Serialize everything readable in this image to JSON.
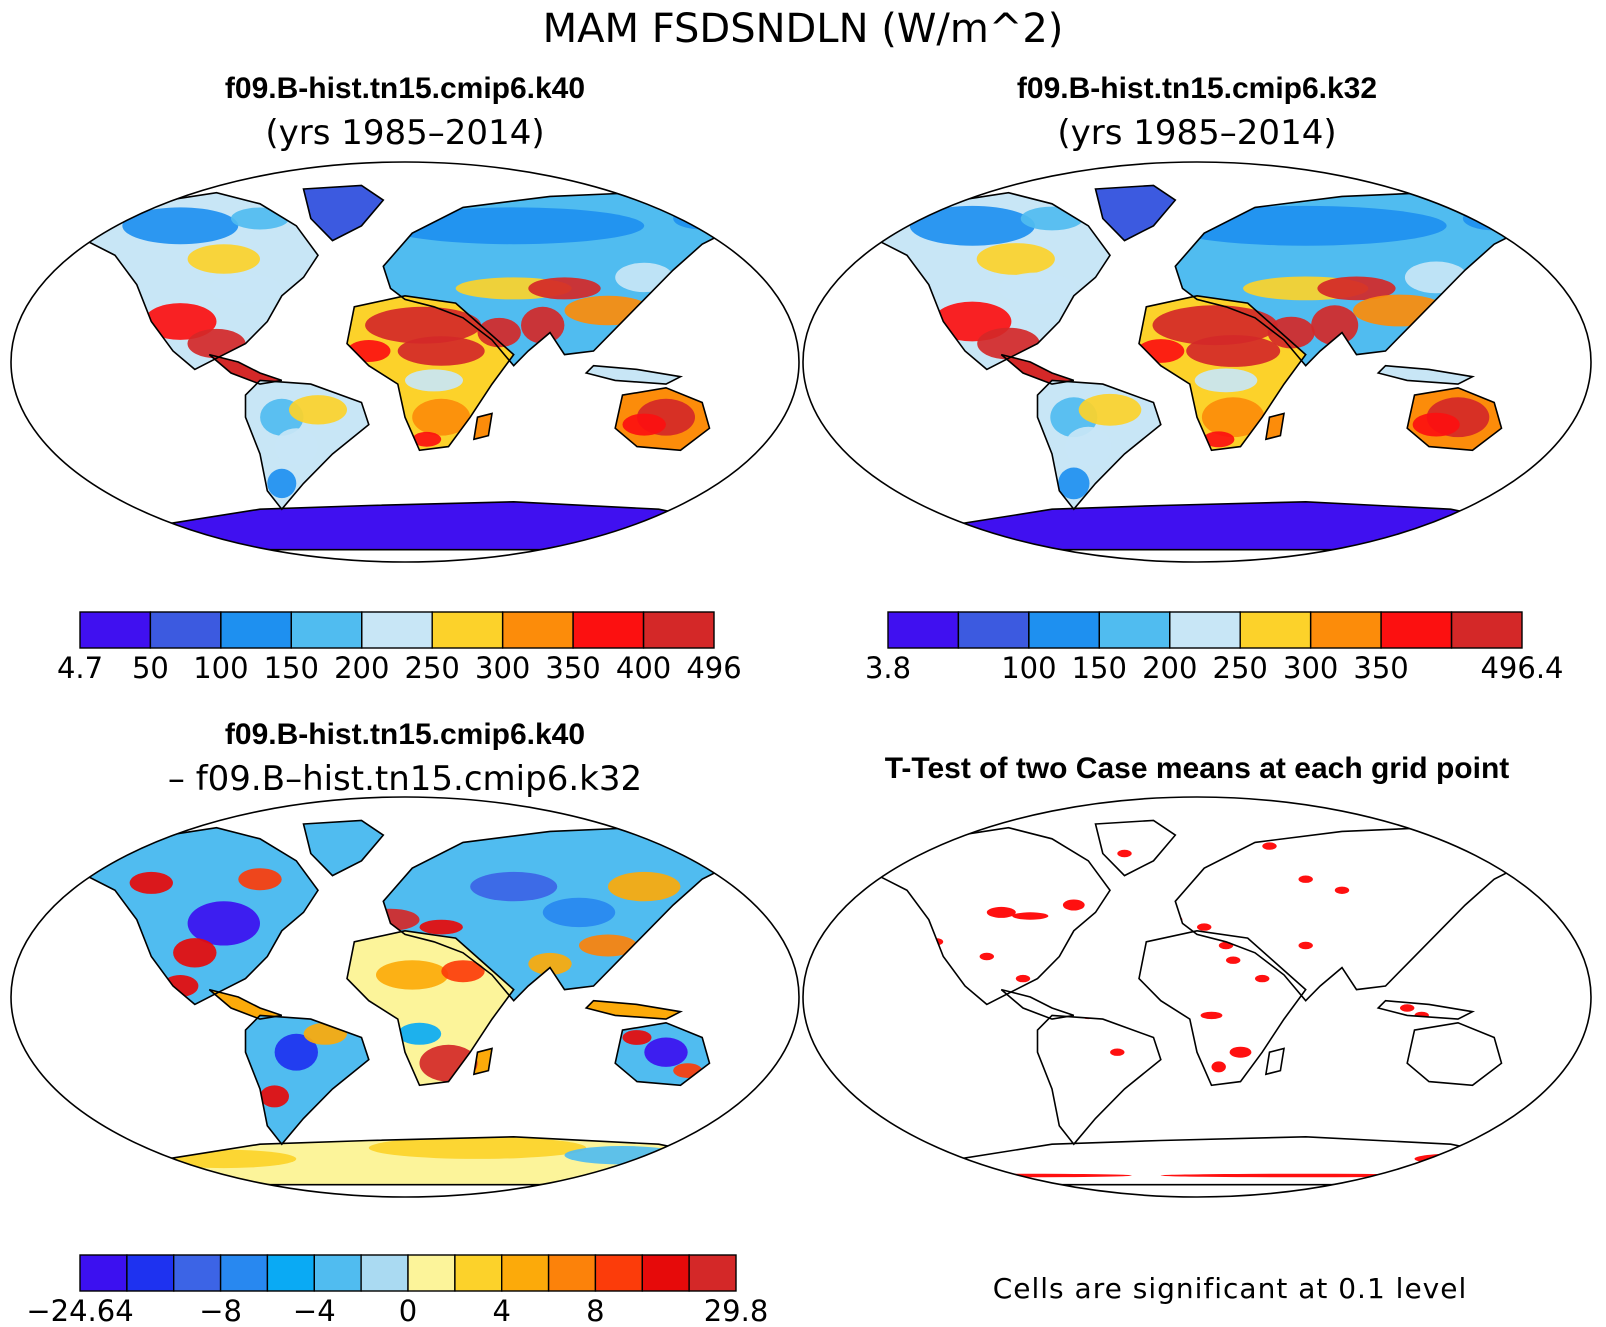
{
  "figure": {
    "title": "MAM FSDSNDLN (W/m^2)"
  },
  "colors": {
    "abs_palette": [
      "#4010f0",
      "#3c5ae0",
      "#1e90f0",
      "#50bcf0",
      "#c8e6f6",
      "#fcd22a",
      "#fc8c0a",
      "#fc1010",
      "#d42828"
    ],
    "diff_palette": [
      "#3c10f0",
      "#1e32f0",
      "#3c64e6",
      "#2888f0",
      "#0aaaf4",
      "#50bcf0",
      "#aadaf2",
      "#fcf49a",
      "#fcd22a",
      "#fcaa0a",
      "#fc820a",
      "#fc3c0a",
      "#e60a0a",
      "#d42828"
    ],
    "significant": "#ff1010",
    "coastline": "#000000"
  },
  "panels": {
    "case1": {
      "title": "f09.B-hist.tn15.cmip6.k40",
      "subtitle": "(yrs 1985–2014)"
    },
    "case2": {
      "title": "f09.B-hist.tn15.cmip6.k32",
      "subtitle": "(yrs 1985–2014)"
    },
    "diff": {
      "title": "f09.B-hist.tn15.cmip6.k40",
      "subtitle": "– f09.B–hist.tn15.cmip6.k32"
    },
    "ttest": {
      "title": "T-Test of two Case means at each grid point",
      "note": "Cells are significant at 0.1 level"
    }
  },
  "chart_data": [
    {
      "type": "heatmap",
      "name_ref": "case1",
      "projection": "robinson",
      "colorbar": {
        "boundaries": [
          4.7,
          50,
          100,
          150,
          200,
          250,
          300,
          350,
          400,
          496
        ],
        "labels": [
          "4.7",
          "50",
          "100",
          "150",
          "200",
          "250",
          "300",
          "350",
          "400",
          "496"
        ],
        "range": [
          4.7,
          496
        ]
      }
    },
    {
      "type": "heatmap",
      "name_ref": "case2",
      "projection": "robinson",
      "colorbar": {
        "boundaries": [
          3.8,
          50,
          100,
          150,
          200,
          250,
          300,
          350,
          400,
          496.4
        ],
        "labels": [
          "3.8",
          "",
          "100",
          "150",
          "200",
          "250",
          "300",
          "350",
          "",
          "496.4"
        ],
        "range": [
          3.8,
          496.4
        ]
      }
    },
    {
      "type": "heatmap",
      "name_ref": "diff",
      "projection": "robinson",
      "colorbar": {
        "boundaries": [
          -24.64,
          -12,
          -10,
          -8,
          -6,
          -4,
          -2,
          0,
          2,
          4,
          6,
          8,
          10,
          12,
          29.8
        ],
        "labels": [
          "−24.64",
          "",
          "",
          "−8",
          "",
          "−4",
          "",
          "0",
          "",
          "4",
          "",
          "8",
          "",
          "",
          "29.8"
        ],
        "range": [
          -24.64,
          29.8
        ]
      }
    },
    {
      "type": "heatmap",
      "name_ref": "ttest",
      "projection": "robinson",
      "significance_level": 0.1
    }
  ]
}
